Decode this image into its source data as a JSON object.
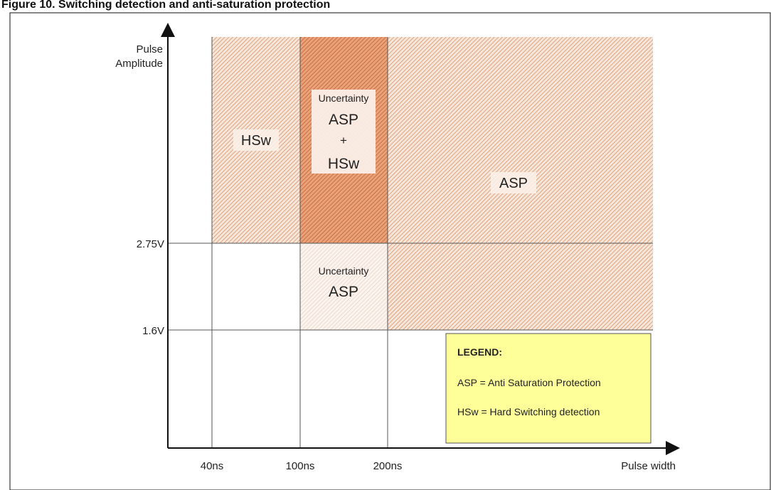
{
  "header_fragment": "Figure 10. Switching detection and anti-saturation protection",
  "y_axis": {
    "label_line1": "Pulse",
    "label_line2": "Amplitude",
    "ticks": [
      "2.75V",
      "1.6V"
    ]
  },
  "x_axis": {
    "label": "Pulse width",
    "ticks": [
      "40ns",
      "100ns",
      "200ns"
    ]
  },
  "regions": {
    "hsw": {
      "label": "HSw"
    },
    "uncertainty_top": {
      "line1": "Uncertainty",
      "line2": "ASP",
      "line3": "+",
      "line4": "HSw"
    },
    "asp_upper": {
      "label": "ASP"
    },
    "uncertainty_mid": {
      "line1": "Uncertainty",
      "line2": "ASP"
    }
  },
  "legend": {
    "title": "LEGEND:",
    "item1": "ASP = Anti Saturation Protection",
    "item2": "HSw = Hard Switching detection"
  },
  "colors": {
    "hatch_light": "#e8b89a",
    "hatch_dark": "#d98a5f",
    "hatch_pale": "#efd9c8",
    "legend_fill": "#ffff99",
    "axis": "#111111",
    "grid": "#555555"
  }
}
